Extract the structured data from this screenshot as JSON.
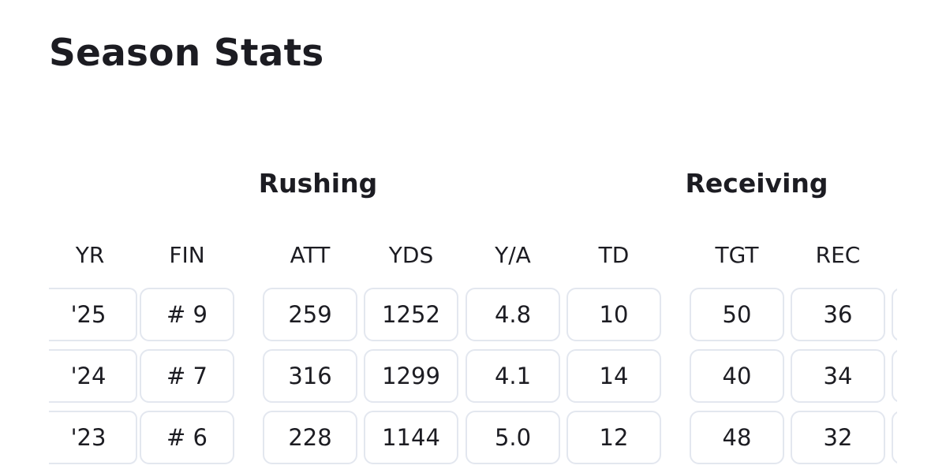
{
  "title": "Season Stats",
  "groups": {
    "rushing": "Rushing",
    "receiving": "Receiving"
  },
  "columns": {
    "yr": "YR",
    "fin": "FIN",
    "att": "ATT",
    "yds": "YDS",
    "ya": "Y/A",
    "td": "TD",
    "tgt": "TGT",
    "rec": "REC"
  },
  "rows": [
    {
      "yr": "'25",
      "fin": "# 9",
      "att": "259",
      "yds": "1252",
      "ya": "4.8",
      "td": "10",
      "tgt": "50",
      "rec": "36"
    },
    {
      "yr": "'24",
      "fin": "# 7",
      "att": "316",
      "yds": "1299",
      "ya": "4.1",
      "td": "14",
      "tgt": "40",
      "rec": "34"
    },
    {
      "yr": "'23",
      "fin": "# 6",
      "att": "228",
      "yds": "1144",
      "ya": "5.0",
      "td": "12",
      "tgt": "48",
      "rec": "32"
    }
  ]
}
